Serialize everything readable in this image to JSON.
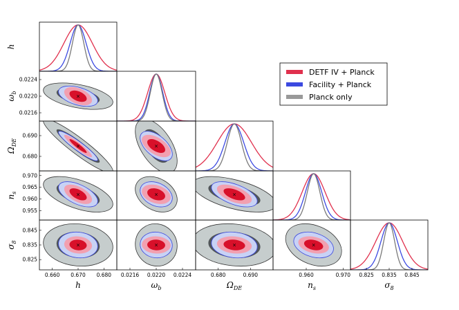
{
  "chart_data": {
    "type": "corner-triangle",
    "parameters": [
      {
        "name": "h",
        "label_main": "h",
        "label_sub": "",
        "center": 0.67,
        "range": [
          0.655,
          0.685
        ],
        "ticks": [
          "0.660",
          "0.670",
          "0.680"
        ]
      },
      {
        "name": "omega_b",
        "label_main": "ω",
        "label_sub": "b",
        "center": 0.022,
        "range": [
          0.0214,
          0.0226
        ],
        "ticks": [
          "0.0216",
          "0.0220",
          "0.0224"
        ]
      },
      {
        "name": "Omega_DE",
        "label_main": "Ω",
        "label_sub": "DE",
        "center": 0.685,
        "range": [
          0.673,
          0.697
        ],
        "ticks": [
          "0.680",
          "0.690"
        ]
      },
      {
        "name": "n_s",
        "label_main": "n",
        "label_sub": "s",
        "center": 0.962,
        "range": [
          0.951,
          0.972
        ],
        "ticks": [
          "0.955",
          "0.960",
          "0.965",
          "0.970"
        ]
      },
      {
        "name": "sigma_8",
        "label_main": "σ",
        "label_sub": "8",
        "center": 0.835,
        "range": [
          0.818,
          0.852
        ],
        "ticks": [
          "0.825",
          "0.835",
          "0.845"
        ]
      }
    ],
    "x_tick_labels": [
      [
        "0.660",
        "0.670",
        "0.680"
      ],
      [
        "0.0216",
        "0.0220",
        "0.0224"
      ],
      [
        "0.680",
        "0.690"
      ],
      [
        "0.960",
        "0.970"
      ],
      [
        "0.825",
        "0.835",
        "0.845"
      ]
    ],
    "y_tick_labels": [
      [],
      [
        "0.0216",
        "0.0220",
        "0.0224"
      ],
      [
        "0.680",
        "0.690"
      ],
      [
        "0.955",
        "0.960",
        "0.965",
        "0.970"
      ],
      [
        "0.825",
        "0.835",
        "0.845"
      ]
    ],
    "series": [
      {
        "name": "DETF IV + Planck",
        "color": "#e0304d",
        "sigma": [
          0.0022,
          9e-05,
          0.0022,
          0.0017,
          0.0024
        ]
      },
      {
        "name": "Facility + Planck",
        "color": "#3b49e0",
        "sigma": [
          0.0031,
          0.0001,
          0.0029,
          0.0022,
          0.0036
        ]
      },
      {
        "name": "Planck only",
        "color": "#7a7a7a",
        "sigma": [
          0.0055,
          0.00013,
          0.0053,
          0.0031,
          0.0059
        ]
      }
    ],
    "marker": "×"
  },
  "legend": {
    "items": [
      {
        "label": "DETF IV + Planck",
        "color": "#e0304d"
      },
      {
        "label": "Facility + Planck",
        "color": "#3b49e0"
      },
      {
        "label": "Planck only",
        "color": "#999999"
      }
    ]
  }
}
